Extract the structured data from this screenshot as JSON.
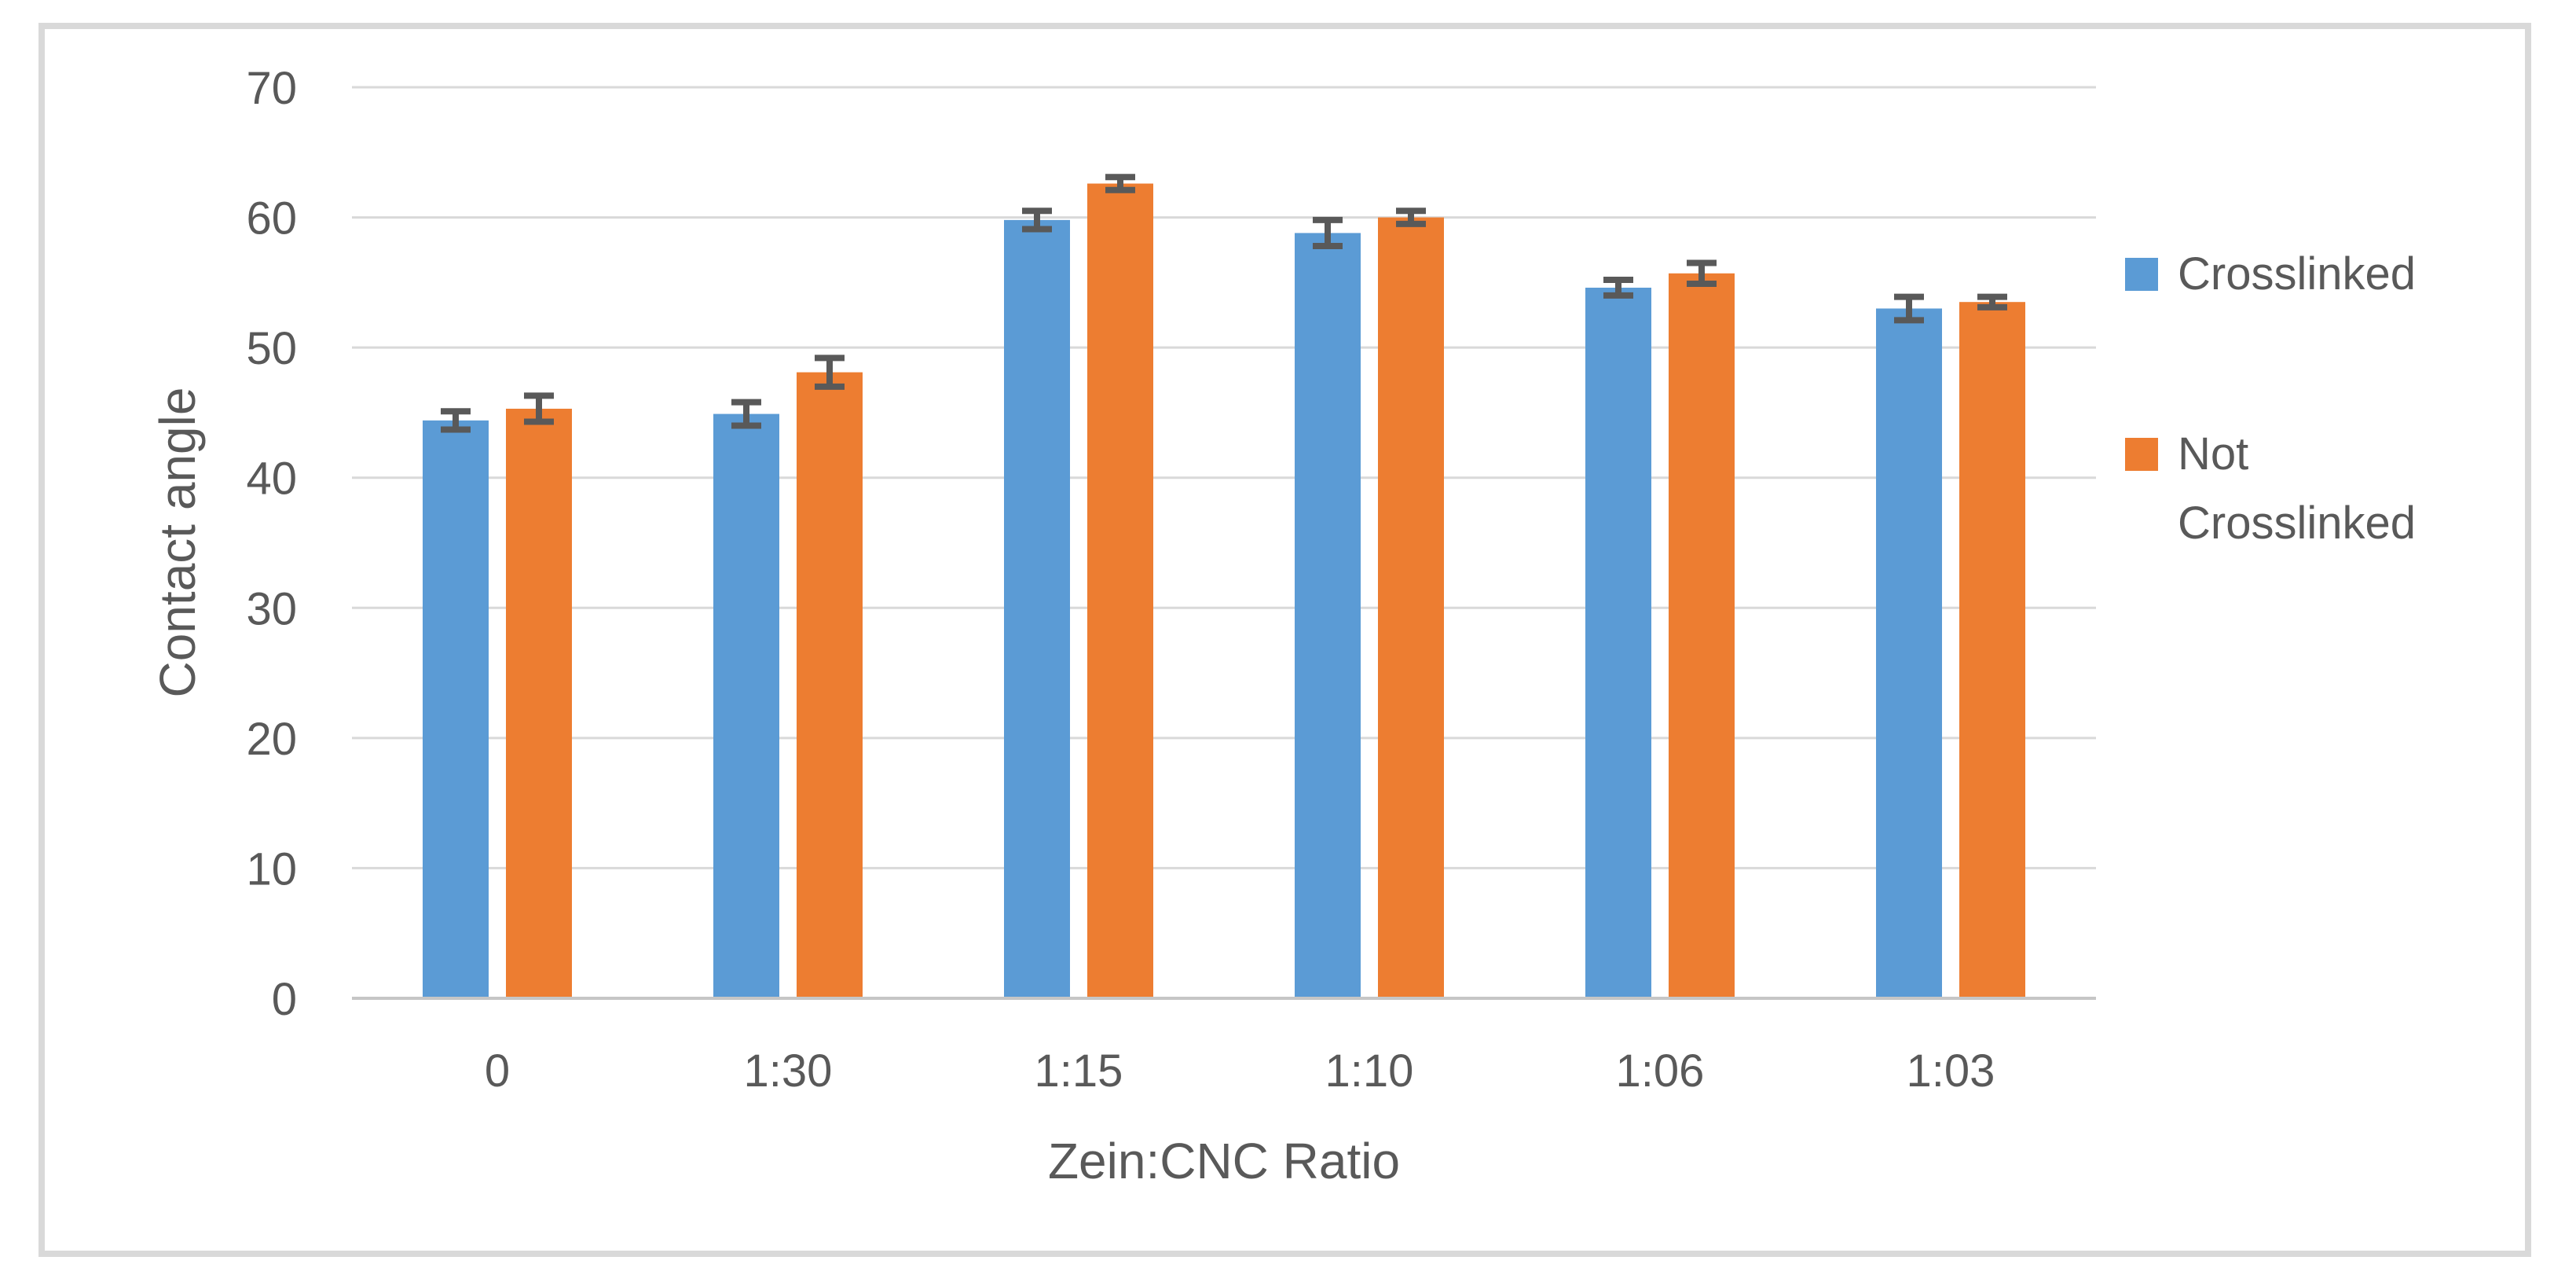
{
  "chart_data": {
    "type": "bar",
    "title": "",
    "categories": [
      "0",
      "1:30",
      "1:15",
      "1:10",
      "1:06",
      "1:03"
    ],
    "series": [
      {
        "name": "Crosslinked",
        "color": "#5B9BD5",
        "values": [
          44.4,
          44.9,
          59.8,
          58.8,
          54.6,
          53.0
        ],
        "errors": [
          0.7,
          0.9,
          0.7,
          1.0,
          0.6,
          0.9
        ]
      },
      {
        "name": "Not Crosslinked",
        "color": "#ED7D31",
        "values": [
          45.3,
          48.1,
          62.6,
          60.0,
          55.7,
          53.5
        ],
        "errors": [
          1.0,
          1.1,
          0.5,
          0.5,
          0.8,
          0.4
        ]
      }
    ],
    "xlabel": "Zein:CNC Ratio",
    "ylabel": "Contact angle",
    "ylim": [
      0,
      70
    ],
    "yticks": [
      0,
      10,
      20,
      30,
      40,
      50,
      60,
      70
    ],
    "grid": "horizontal",
    "legend_position": "right",
    "legend": {
      "item1": "Crosslinked",
      "item2": "Not\nCrosslinked"
    }
  },
  "colors": {
    "background": "#FFFFFF",
    "border": "#D9D9D9",
    "gridline": "#D9D9D9",
    "axis_line": "#C6C6C6",
    "error_bar": "#595959",
    "text": "#595959"
  }
}
